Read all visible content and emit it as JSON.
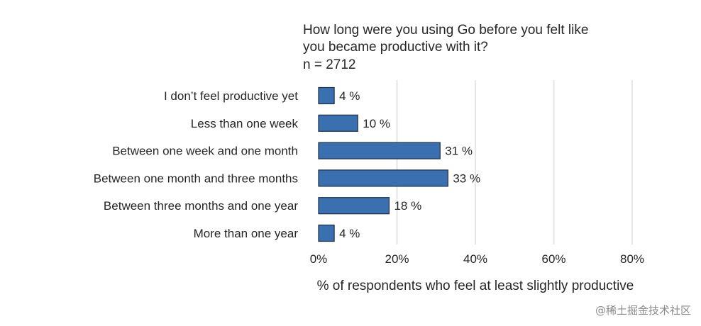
{
  "chart_data": {
    "type": "bar",
    "orientation": "horizontal",
    "title": "How long were you using Go before you felt like you became productive with it? n = 2712",
    "title_lines": [
      "How long were you using Go before you felt like",
      "you became productive with it?",
      "n = 2712"
    ],
    "categories": [
      "I don’t feel productive yet",
      "Less than one week",
      "Between one week and one month",
      "Between one month and three months",
      "Between three months and one year",
      "More than one year"
    ],
    "values": [
      4,
      10,
      31,
      33,
      18,
      4
    ],
    "value_labels": [
      "4 %",
      "10 %",
      "31 %",
      "33 %",
      "18 %",
      "4 %"
    ],
    "xlabel": "% of respondents who feel at least slightly productive",
    "ylabel": "",
    "xlim": [
      0,
      80
    ],
    "x_ticks": [
      0,
      20,
      40,
      60,
      80
    ],
    "x_tick_labels": [
      "0%",
      "20%",
      "40%",
      "60%",
      "80%"
    ],
    "grid": "vertical",
    "bar_color": "#3a6fb0",
    "bar_edge_color": "#1f2f44",
    "grid_color": "#e6e6e6"
  },
  "watermark": "@稀土掘金技术社区"
}
